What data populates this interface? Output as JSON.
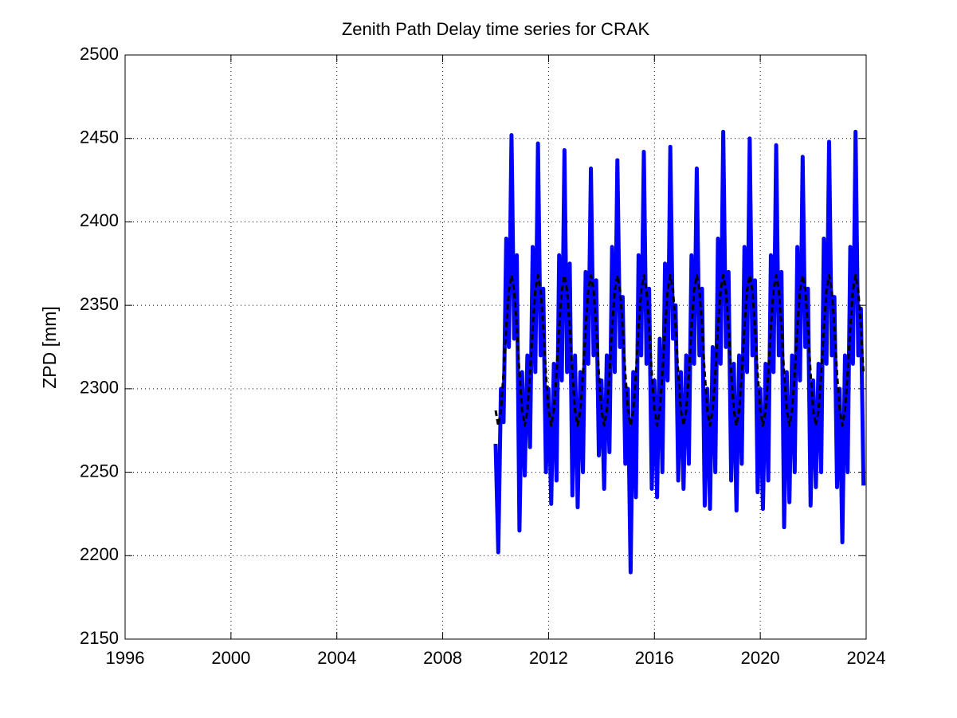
{
  "chart_data": {
    "type": "line",
    "title": "Zenith Path Delay time series for CRAK",
    "y_label": "ZPD [mm]",
    "xlim": [
      1996,
      2024
    ],
    "xticks": [
      1996,
      2000,
      2004,
      2008,
      2012,
      2016,
      2020,
      2024
    ],
    "ylim": [
      2150,
      2500
    ],
    "yticks": [
      2150,
      2200,
      2250,
      2300,
      2350,
      2400,
      2450,
      2500
    ],
    "grid": true,
    "x": [
      2010,
      2010.1,
      2010.2,
      2010.3,
      2010.4,
      2010.5,
      2010.6,
      2010.7,
      2010.8,
      2010.9,
      2011,
      2011.1,
      2011.2,
      2011.3,
      2011.4,
      2011.5,
      2011.6,
      2011.7,
      2011.8,
      2011.9,
      2012,
      2012.1,
      2012.2,
      2012.3,
      2012.4,
      2012.5,
      2012.6,
      2012.7,
      2012.8,
      2012.9,
      2013,
      2013.1,
      2013.2,
      2013.3,
      2013.4,
      2013.5,
      2013.6,
      2013.7,
      2013.8,
      2013.9,
      2014,
      2014.1,
      2014.2,
      2014.3,
      2014.4,
      2014.5,
      2014.6,
      2014.7,
      2014.8,
      2014.9,
      2015,
      2015.1,
      2015.2,
      2015.3,
      2015.4,
      2015.5,
      2015.6,
      2015.7,
      2015.8,
      2015.9,
      2016,
      2016.1,
      2016.2,
      2016.3,
      2016.4,
      2016.5,
      2016.6,
      2016.7,
      2016.8,
      2016.9,
      2017,
      2017.1,
      2017.2,
      2017.3,
      2017.4,
      2017.5,
      2017.6,
      2017.7,
      2017.8,
      2017.9,
      2018,
      2018.1,
      2018.2,
      2018.3,
      2018.4,
      2018.5,
      2018.6,
      2018.7,
      2018.8,
      2018.9,
      2019,
      2019.1,
      2019.2,
      2019.3,
      2019.4,
      2019.5,
      2019.6,
      2019.7,
      2019.8,
      2019.9,
      2020,
      2020.1,
      2020.2,
      2020.3,
      2020.4,
      2020.5,
      2020.6,
      2020.7,
      2020.8,
      2020.9,
      2021,
      2021.1,
      2021.2,
      2021.3,
      2021.4,
      2021.5,
      2021.6,
      2021.7,
      2021.8,
      2021.9,
      2022,
      2022.1,
      2022.2,
      2022.3,
      2022.4,
      2022.5,
      2022.6,
      2022.7,
      2022.8,
      2022.9,
      2023,
      2023.1,
      2023.2,
      2023.3,
      2023.4,
      2023.5,
      2023.6,
      2023.7,
      2023.8,
      2023.9
    ],
    "series": [
      {
        "color": "#0000ff",
        "width": 5,
        "dashed": false,
        "values": [
          2267,
          2202,
          2300,
          2280,
          2390,
          2325,
          2452,
          2330,
          2380,
          2215,
          2310,
          2248,
          2320,
          2265,
          2385,
          2310,
          2447,
          2320,
          2360,
          2250,
          2300,
          2231,
          2315,
          2245,
          2380,
          2305,
          2443,
          2310,
          2375,
          2236,
          2320,
          2229,
          2310,
          2250,
          2370,
          2315,
          2432,
          2320,
          2365,
          2260,
          2305,
          2240,
          2320,
          2262,
          2385,
          2310,
          2437,
          2325,
          2355,
          2255,
          2300,
          2190,
          2310,
          2235,
          2380,
          2320,
          2442,
          2315,
          2360,
          2240,
          2305,
          2235,
          2330,
          2250,
          2375,
          2305,
          2445,
          2330,
          2350,
          2245,
          2310,
          2240,
          2320,
          2255,
          2380,
          2315,
          2432,
          2320,
          2360,
          2230,
          2300,
          2228,
          2325,
          2250,
          2390,
          2315,
          2454,
          2325,
          2370,
          2245,
          2315,
          2227,
          2320,
          2255,
          2385,
          2310,
          2450,
          2320,
          2365,
          2238,
          2300,
          2228,
          2315,
          2245,
          2380,
          2310,
          2446,
          2320,
          2370,
          2217,
          2310,
          2232,
          2320,
          2250,
          2385,
          2305,
          2439,
          2325,
          2360,
          2230,
          2305,
          2241,
          2315,
          2250,
          2390,
          2315,
          2448,
          2320,
          2355,
          2241,
          2300,
          2208,
          2320,
          2250,
          2385,
          2315,
          2454,
          2320,
          2348,
          2242
        ]
      },
      {
        "color": "#000000",
        "width": 3,
        "dashed": true,
        "values": [
          2287,
          2278,
          2287,
          2309,
          2337,
          2359,
          2368,
          2359,
          2337,
          2309,
          2287,
          2278,
          2287,
          2309,
          2337,
          2359,
          2368,
          2359,
          2337,
          2309,
          2287,
          2278,
          2287,
          2309,
          2337,
          2359,
          2368,
          2359,
          2337,
          2309,
          2287,
          2278,
          2287,
          2309,
          2337,
          2359,
          2368,
          2359,
          2337,
          2309,
          2287,
          2278,
          2287,
          2309,
          2337,
          2359,
          2368,
          2359,
          2337,
          2309,
          2287,
          2278,
          2287,
          2309,
          2337,
          2359,
          2368,
          2359,
          2337,
          2309,
          2287,
          2278,
          2287,
          2309,
          2337,
          2359,
          2368,
          2359,
          2337,
          2309,
          2287,
          2278,
          2287,
          2309,
          2337,
          2359,
          2368,
          2359,
          2337,
          2309,
          2287,
          2278,
          2287,
          2309,
          2337,
          2359,
          2368,
          2359,
          2337,
          2309,
          2287,
          2278,
          2287,
          2309,
          2337,
          2359,
          2368,
          2359,
          2337,
          2309,
          2287,
          2278,
          2287,
          2309,
          2337,
          2359,
          2368,
          2359,
          2337,
          2309,
          2287,
          2278,
          2287,
          2309,
          2337,
          2359,
          2368,
          2359,
          2337,
          2309,
          2287,
          2278,
          2287,
          2309,
          2337,
          2359,
          2368,
          2359,
          2337,
          2309,
          2287,
          2278,
          2287,
          2309,
          2337,
          2359,
          2368,
          2359,
          2337,
          2309
        ]
      }
    ]
  }
}
